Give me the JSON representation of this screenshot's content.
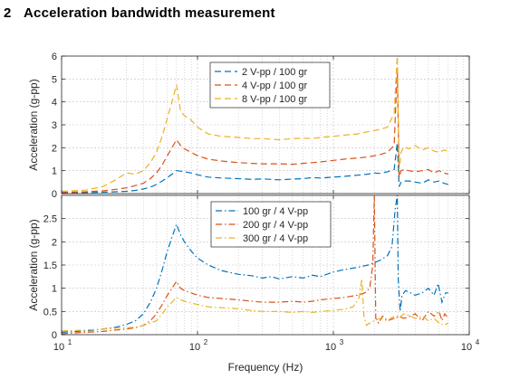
{
  "section": {
    "number": "2",
    "title": "Acceleration bandwidth measurement"
  },
  "colors": {
    "blue": "#0072BD",
    "orange": "#D95319",
    "yellow": "#EDB120",
    "grid": "#bfbfbf",
    "axis": "#262626"
  },
  "chart_data": [
    {
      "type": "line",
      "xscale": "log",
      "xlim": [
        10,
        10000
      ],
      "ylim": [
        0,
        6
      ],
      "yticks": [
        0,
        1,
        2,
        3,
        4,
        5,
        6
      ],
      "ylabel": "Acceleration (g-pp)",
      "xlabel": "",
      "grid": true,
      "legend": "top-center",
      "line_style": "dashed",
      "series": [
        {
          "name": "2 V-pp / 100 gr",
          "color": "#0072BD",
          "x": [
            10,
            15,
            20,
            25,
            30,
            35,
            40,
            45,
            50,
            55,
            60,
            65,
            70,
            75,
            80,
            90,
            100,
            120,
            150,
            200,
            250,
            300,
            400,
            500,
            600,
            700,
            800,
            1000,
            1200,
            1500,
            1800,
            2000,
            2200,
            2500,
            2800,
            2950,
            3050,
            3150,
            3300,
            3600,
            4000,
            4500,
            5000,
            5500,
            6000,
            6500,
            7000
          ],
          "y": [
            0.02,
            0.04,
            0.06,
            0.08,
            0.1,
            0.14,
            0.2,
            0.28,
            0.4,
            0.55,
            0.7,
            0.85,
            1.0,
            0.98,
            0.95,
            0.9,
            0.82,
            0.72,
            0.68,
            0.65,
            0.62,
            0.64,
            0.6,
            0.63,
            0.65,
            0.7,
            0.68,
            0.72,
            0.75,
            0.8,
            0.85,
            0.9,
            0.88,
            0.95,
            1.05,
            2.2,
            0.3,
            0.5,
            0.55,
            0.55,
            0.5,
            0.45,
            0.6,
            0.5,
            0.55,
            0.45,
            0.4
          ]
        },
        {
          "name": "4 V-pp / 100 gr",
          "color": "#D95319",
          "x": [
            10,
            15,
            20,
            25,
            30,
            35,
            40,
            45,
            50,
            55,
            60,
            65,
            70,
            75,
            80,
            90,
            100,
            120,
            150,
            200,
            250,
            300,
            400,
            500,
            600,
            700,
            800,
            1000,
            1200,
            1500,
            1800,
            2000,
            2200,
            2500,
            2800,
            2950,
            3050,
            3150,
            3300,
            3600,
            4000,
            4500,
            5000,
            5500,
            6000,
            6500,
            7000
          ],
          "y": [
            0.05,
            0.08,
            0.12,
            0.18,
            0.25,
            0.35,
            0.45,
            0.65,
            0.9,
            1.25,
            1.65,
            2.0,
            2.35,
            2.1,
            1.95,
            1.8,
            1.65,
            1.5,
            1.42,
            1.35,
            1.32,
            1.3,
            1.3,
            1.28,
            1.32,
            1.35,
            1.38,
            1.45,
            1.5,
            1.55,
            1.6,
            1.65,
            1.7,
            1.8,
            2.1,
            5.5,
            0.7,
            1.0,
            1.05,
            1.0,
            0.95,
            1.0,
            1.05,
            0.9,
            1.0,
            0.9,
            0.85
          ]
        },
        {
          "name": "8 V-pp / 100 gr",
          "color": "#EDB120",
          "x": [
            10,
            15,
            20,
            25,
            30,
            35,
            40,
            45,
            50,
            55,
            60,
            65,
            70,
            75,
            80,
            90,
            100,
            120,
            150,
            200,
            250,
            300,
            400,
            500,
            600,
            700,
            800,
            1000,
            1200,
            1500,
            1800,
            2000,
            2200,
            2500,
            2800,
            2950,
            3050,
            3150,
            3300,
            3600,
            4000,
            4500,
            5000,
            5500,
            6000,
            6500,
            7000
          ],
          "y": [
            0.1,
            0.15,
            0.3,
            0.6,
            0.9,
            0.85,
            1.0,
            1.35,
            1.8,
            2.5,
            3.3,
            4.0,
            4.75,
            3.6,
            3.4,
            3.2,
            2.9,
            2.6,
            2.5,
            2.45,
            2.4,
            2.4,
            2.35,
            2.4,
            2.42,
            2.4,
            2.45,
            2.5,
            2.55,
            2.6,
            2.7,
            2.75,
            2.8,
            2.9,
            3.5,
            6.0,
            1.0,
            1.8,
            2.05,
            1.95,
            2.1,
            1.9,
            2.0,
            1.85,
            1.8,
            1.9,
            1.85
          ]
        }
      ]
    },
    {
      "type": "line",
      "xscale": "log",
      "xlim": [
        10,
        10000
      ],
      "ylim": [
        0,
        3
      ],
      "yticks": [
        0,
        0.5,
        1,
        1.5,
        2,
        2.5
      ],
      "ylabel": "Acceleration (g-pp)",
      "xlabel": "Frequency (Hz)",
      "xticklabels": [
        "10",
        "10",
        "10",
        "10"
      ],
      "xtick_exponents": [
        "1",
        "2",
        "3",
        "4"
      ],
      "grid": true,
      "legend": "top-center",
      "line_style": "dashdot",
      "series": [
        {
          "name": "100 gr / 4 V-pp",
          "color": "#0072BD",
          "x": [
            10,
            15,
            20,
            25,
            30,
            35,
            40,
            45,
            50,
            55,
            60,
            65,
            70,
            75,
            80,
            90,
            100,
            120,
            150,
            200,
            250,
            300,
            350,
            400,
            500,
            600,
            700,
            800,
            1000,
            1200,
            1500,
            1800,
            2000,
            2200,
            2500,
            2700,
            2850,
            2950,
            3000,
            3100,
            3200,
            3400,
            3700,
            4000,
            4500,
            5000,
            5500,
            5900,
            6300,
            6700,
            7000
          ],
          "y": [
            0.05,
            0.08,
            0.12,
            0.16,
            0.22,
            0.3,
            0.45,
            0.7,
            1.0,
            1.4,
            1.8,
            2.1,
            2.38,
            2.15,
            2.0,
            1.8,
            1.65,
            1.5,
            1.38,
            1.3,
            1.27,
            1.22,
            1.25,
            1.2,
            1.25,
            1.22,
            1.28,
            1.25,
            1.35,
            1.4,
            1.45,
            1.5,
            1.55,
            1.6,
            1.7,
            1.9,
            2.7,
            3.0,
            1.2,
            0.5,
            0.85,
            0.95,
            0.9,
            0.85,
            0.9,
            1.0,
            0.85,
            1.1,
            0.7,
            0.9,
            0.9
          ]
        },
        {
          "name": "200 gr / 4 V-pp",
          "color": "#D95319",
          "x": [
            10,
            15,
            20,
            25,
            30,
            35,
            40,
            45,
            50,
            55,
            60,
            65,
            70,
            75,
            80,
            90,
            100,
            120,
            150,
            200,
            250,
            300,
            400,
            500,
            600,
            700,
            800,
            1000,
            1200,
            1500,
            1700,
            1850,
            1950,
            2000,
            2050,
            2150,
            2300,
            2500,
            2800,
            3000,
            3300,
            3700,
            4000,
            4500,
            5000,
            5500,
            6000,
            6300,
            6600,
            7000
          ],
          "y": [
            0.02,
            0.05,
            0.07,
            0.1,
            0.12,
            0.15,
            0.2,
            0.3,
            0.45,
            0.65,
            0.85,
            1.0,
            1.15,
            1.0,
            0.95,
            0.9,
            0.85,
            0.8,
            0.78,
            0.75,
            0.72,
            0.7,
            0.7,
            0.72,
            0.7,
            0.72,
            0.75,
            0.78,
            0.8,
            0.85,
            0.9,
            1.0,
            1.5,
            3.0,
            0.35,
            0.25,
            0.4,
            0.3,
            0.35,
            0.4,
            0.35,
            0.4,
            0.45,
            0.3,
            0.5,
            0.4,
            0.5,
            0.3,
            0.45,
            0.35
          ]
        },
        {
          "name": "300 gr / 4 V-pp",
          "color": "#EDB120",
          "x": [
            10,
            15,
            20,
            25,
            30,
            35,
            40,
            45,
            50,
            55,
            60,
            65,
            70,
            75,
            80,
            90,
            100,
            120,
            150,
            200,
            250,
            300,
            400,
            500,
            600,
            700,
            800,
            1000,
            1200,
            1400,
            1550,
            1620,
            1680,
            1750,
            1850,
            2000,
            2200,
            2500,
            2800,
            3000,
            3300,
            3700,
            4000,
            4500,
            5000,
            5500,
            6000,
            6500,
            7000
          ],
          "y": [
            0.08,
            0.1,
            0.12,
            0.14,
            0.15,
            0.16,
            0.2,
            0.25,
            0.3,
            0.45,
            0.6,
            0.7,
            0.8,
            0.75,
            0.72,
            0.68,
            0.65,
            0.6,
            0.58,
            0.56,
            0.52,
            0.5,
            0.5,
            0.48,
            0.5,
            0.48,
            0.5,
            0.52,
            0.55,
            0.6,
            0.8,
            1.2,
            0.4,
            0.2,
            0.25,
            0.3,
            0.35,
            0.3,
            0.4,
            0.35,
            0.45,
            0.4,
            0.35,
            0.4,
            0.3,
            0.35,
            0.25,
            0.2,
            0.25
          ]
        }
      ]
    }
  ]
}
